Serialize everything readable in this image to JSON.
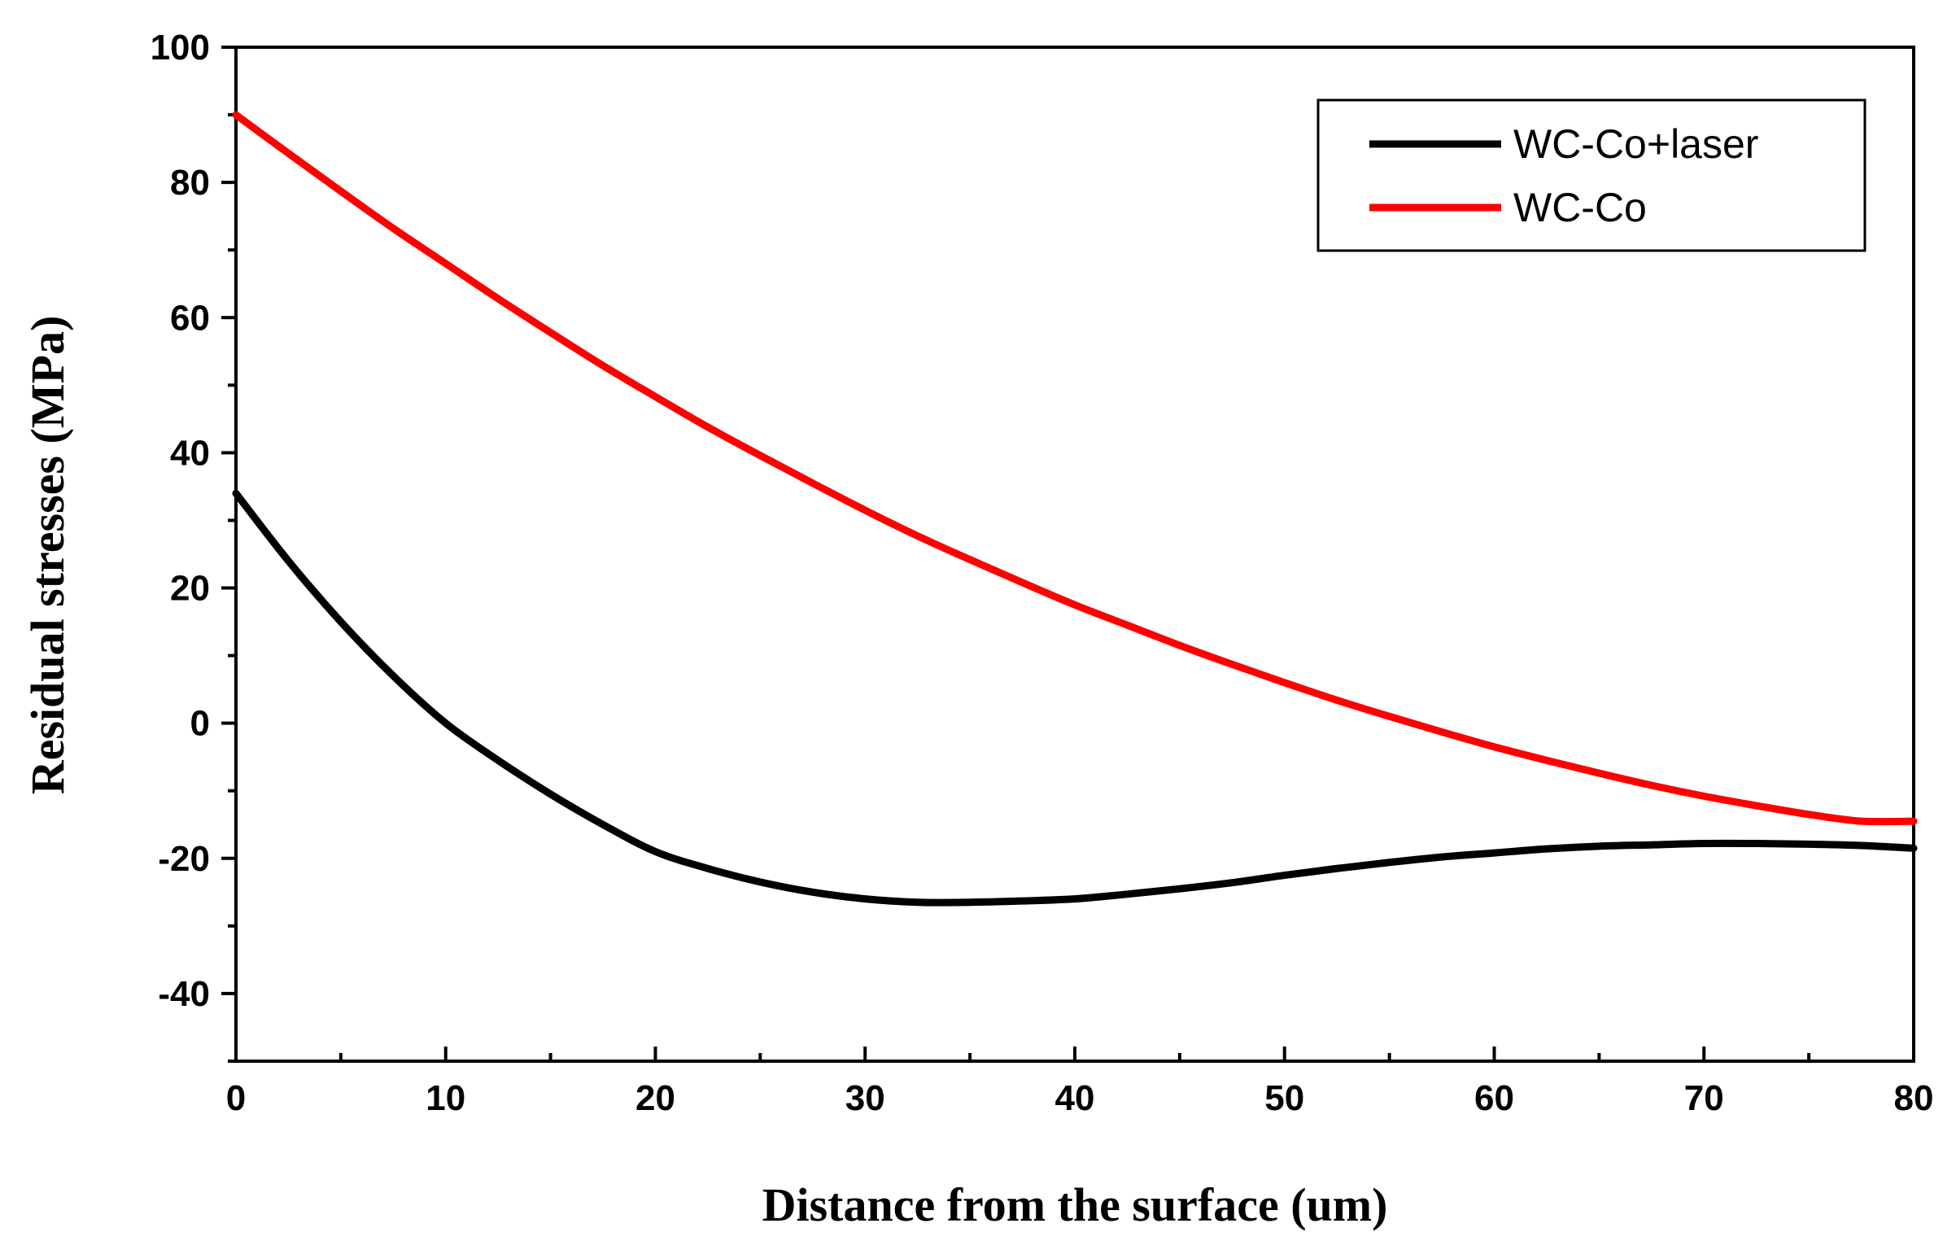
{
  "chart_data": {
    "type": "line",
    "title": "",
    "xlabel": "Distance from the surface  (um)",
    "ylabel": "Residual stresses  (MPa)",
    "xlim": [
      0,
      80
    ],
    "ylim": [
      -50,
      100
    ],
    "x_ticks": [
      0,
      10,
      20,
      30,
      40,
      50,
      60,
      70,
      80
    ],
    "x_tick_labels": [
      "0",
      "10",
      "20",
      "30",
      "40",
      "50",
      "60",
      "70",
      "80"
    ],
    "y_ticks": [
      -40,
      -20,
      0,
      20,
      40,
      60,
      80,
      100
    ],
    "y_tick_labels": [
      "-40",
      "-20",
      "0",
      "20",
      "40",
      "60",
      "80",
      "100"
    ],
    "grid": false,
    "legend_position": "top-right",
    "series": [
      {
        "name": "WC-Co+laser",
        "color": "#000000",
        "x": [
          0,
          2.5,
          5,
          7.5,
          10,
          12.5,
          15,
          17.5,
          20,
          22.5,
          25,
          27.5,
          30,
          32.5,
          35,
          37.5,
          40,
          42.5,
          45,
          47.5,
          50,
          52.5,
          55,
          57.5,
          60,
          62.5,
          65,
          67.5,
          70,
          72.5,
          75,
          77.5,
          80
        ],
        "values": [
          34,
          24,
          15,
          7,
          0,
          -5.5,
          -10.5,
          -15,
          -19,
          -21.5,
          -23.5,
          -25,
          -26,
          -26.5,
          -26.5,
          -26.3,
          -26,
          -25.3,
          -24.5,
          -23.6,
          -22.5,
          -21.5,
          -20.6,
          -19.8,
          -19.2,
          -18.6,
          -18.2,
          -18,
          -17.8,
          -17.8,
          -17.9,
          -18.1,
          -18.5
        ]
      },
      {
        "name": "WC-Co",
        "color": "#ff0000",
        "x": [
          0,
          2.5,
          5,
          7.5,
          10,
          12.5,
          15,
          17.5,
          20,
          22.5,
          25,
          27.5,
          30,
          32.5,
          35,
          37.5,
          40,
          42.5,
          45,
          47.5,
          50,
          52.5,
          55,
          57.5,
          60,
          62.5,
          65,
          67.5,
          70,
          72.5,
          75,
          77.5,
          80
        ],
        "values": [
          90,
          84.3,
          78.7,
          73.2,
          68,
          62.8,
          57.8,
          52.9,
          48.3,
          43.8,
          39.6,
          35.5,
          31.5,
          27.7,
          24.2,
          20.8,
          17.5,
          14.5,
          11.5,
          8.7,
          6,
          3.4,
          1,
          -1.3,
          -3.5,
          -5.5,
          -7.4,
          -9.2,
          -10.8,
          -12.2,
          -13.5,
          -14.5,
          -14.5
        ]
      }
    ]
  }
}
